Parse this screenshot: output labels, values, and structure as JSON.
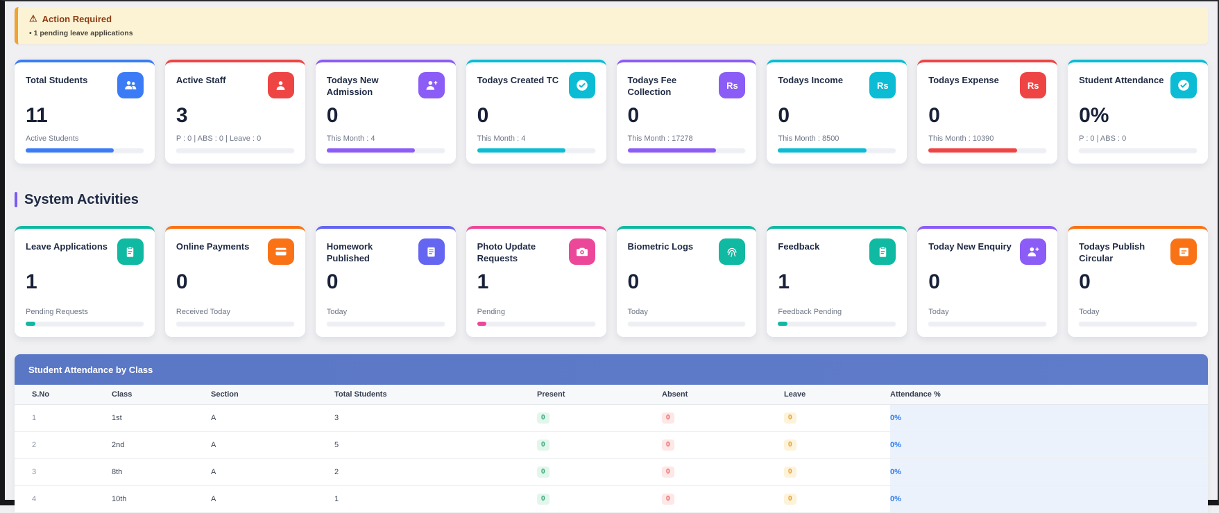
{
  "alert": {
    "icon": "warning-icon",
    "title": "Action Required",
    "items": [
      "1 pending leave applications"
    ]
  },
  "stat_cards": [
    {
      "title": "Total Students",
      "icon": "users-icon",
      "color": "#3b7cf6",
      "value": "11",
      "subtitle": "Active Students",
      "progress": 75
    },
    {
      "title": "Active Staff",
      "icon": "person-icon",
      "color": "#ef4444",
      "value": "3",
      "subtitle": "P : 0 | ABS : 0 | Leave : 0",
      "progress": 0
    },
    {
      "title": "Todays New Admission",
      "icon": "person-plus-icon",
      "color": "#8b5cf6",
      "value": "0",
      "subtitle": "This Month : 4",
      "progress": 75
    },
    {
      "title": "Todays Created TC",
      "icon": "check-circle-icon",
      "color": "#0bbcd4",
      "value": "0",
      "subtitle": "This Month : 4",
      "progress": 75
    },
    {
      "title": "Todays Fee Collection",
      "icon": "rupee-icon",
      "color": "#8b5cf6",
      "value": "0",
      "subtitle": "This Month : 17278",
      "progress": 75
    },
    {
      "title": "Todays Income",
      "icon": "rupee-icon",
      "color": "#0bbcd4",
      "value": "0",
      "subtitle": "This Month : 8500",
      "progress": 75
    },
    {
      "title": "Todays Expense",
      "icon": "rupee-icon",
      "color": "#ef4444",
      "value": "0",
      "subtitle": "This Month : 10390",
      "progress": 75
    },
    {
      "title": "Student Attendance",
      "icon": "check-circle-icon",
      "color": "#0bbcd4",
      "value": "0%",
      "subtitle": "P : 0 | ABS : 0",
      "progress": 0
    }
  ],
  "section": {
    "title": "System Activities"
  },
  "activity_cards": [
    {
      "title": "Leave Applications",
      "icon": "clipboard-icon",
      "color": "#10b9a1",
      "value": "1",
      "subtitle": "Pending Requests",
      "progress": 8
    },
    {
      "title": "Online Payments",
      "icon": "credit-card-icon",
      "color": "#f97316",
      "value": "0",
      "subtitle": "Received Today",
      "progress": 0
    },
    {
      "title": "Homework Published",
      "icon": "book-icon",
      "color": "#6466f1",
      "value": "0",
      "subtitle": "Today",
      "progress": 0
    },
    {
      "title": "Photo Update Requests",
      "icon": "camera-icon",
      "color": "#ec4899",
      "value": "1",
      "subtitle": "Pending",
      "progress": 8
    },
    {
      "title": "Biometric Logs",
      "icon": "fingerprint-icon",
      "color": "#10b9a1",
      "value": "0",
      "subtitle": "Today",
      "progress": 0
    },
    {
      "title": "Feedback",
      "icon": "clipboard-icon",
      "color": "#10b9a1",
      "value": "1",
      "subtitle": "Feedback Pending",
      "progress": 8
    },
    {
      "title": "Today New Enquiry",
      "icon": "person-plus-icon",
      "color": "#8b5cf6",
      "value": "0",
      "subtitle": "Today",
      "progress": 0
    },
    {
      "title": "Todays Publish Circular",
      "icon": "id-card-icon",
      "color": "#f97316",
      "value": "0",
      "subtitle": "Today",
      "progress": 0
    }
  ],
  "attendance_table": {
    "title": "Student Attendance by Class",
    "columns": [
      "S.No",
      "Class",
      "Section",
      "Total Students",
      "Present",
      "Absent",
      "Leave",
      "Attendance %"
    ],
    "rows": [
      {
        "sno": "1",
        "class": "1st",
        "section": "A",
        "total_students": "3",
        "present": "0",
        "absent": "0",
        "leave": "0",
        "attendance": "0%"
      },
      {
        "sno": "2",
        "class": "2nd",
        "section": "A",
        "total_students": "5",
        "present": "0",
        "absent": "0",
        "leave": "0",
        "attendance": "0%"
      },
      {
        "sno": "3",
        "class": "8th",
        "section": "A",
        "total_students": "2",
        "present": "0",
        "absent": "0",
        "leave": "0",
        "attendance": "0%"
      },
      {
        "sno": "4",
        "class": "10th",
        "section": "A",
        "total_students": "1",
        "present": "0",
        "absent": "0",
        "leave": "0",
        "attendance": "0%"
      }
    ]
  },
  "colors": {
    "page_background": "#f0f0f2",
    "alert_background": "#fcf3d5",
    "alert_border": "#f0a32f",
    "alert_title_text": "#8d3c12",
    "section_accent": "#7a5af5",
    "table_header_bar": "#5b78c7",
    "badge_present_text": "#2aa471",
    "badge_absent_text": "#e25c5c",
    "badge_leave_text": "#e79a23",
    "attendance_value_text": "#2e7ce8",
    "attendance_column_background": "#ebf2fc"
  }
}
